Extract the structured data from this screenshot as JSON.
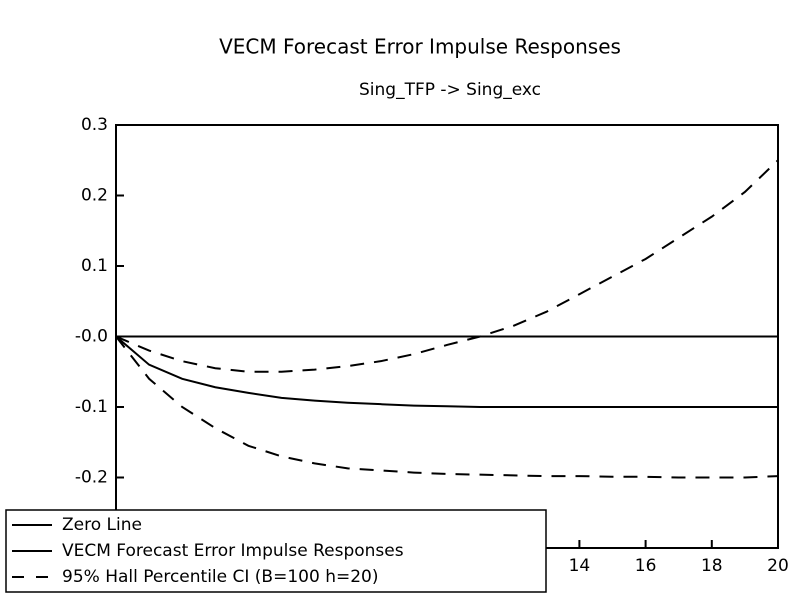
{
  "chart_data": {
    "type": "line",
    "title": "VECM Forecast Error Impulse Responses",
    "subtitle": "Sing_TFP -> Sing_exc",
    "x": [
      0,
      1,
      2,
      3,
      4,
      5,
      6,
      7,
      8,
      9,
      10,
      11,
      12,
      13,
      14,
      15,
      16,
      17,
      18,
      19,
      20
    ],
    "xlim": [
      0,
      20
    ],
    "xticks": [
      14,
      16,
      18,
      20
    ],
    "ylim": [
      -0.3,
      0.3
    ],
    "yticks": [
      0.3,
      0.2,
      0.1,
      {
        "value": 0,
        "label": "-0.0"
      },
      -0.1,
      -0.2
    ],
    "legend": "lower-left",
    "series": [
      {
        "name": "Zero Line",
        "color": "#000000",
        "dash": "solid",
        "values": [
          0,
          0,
          0,
          0,
          0,
          0,
          0,
          0,
          0,
          0,
          0,
          0,
          0,
          0,
          0,
          0,
          0,
          0,
          0,
          0,
          0
        ]
      },
      {
        "name": "VECM Forecast Error Impulse Responses",
        "color": "#000000",
        "dash": "solid",
        "values": [
          0,
          -0.04,
          -0.06,
          -0.072,
          -0.08,
          -0.087,
          -0.091,
          -0.094,
          -0.096,
          -0.098,
          -0.099,
          -0.1,
          -0.1,
          -0.1,
          -0.1,
          -0.1,
          -0.1,
          -0.1,
          -0.1,
          -0.1,
          -0.1
        ]
      },
      {
        "name": "95% Hall Percentile CI (B=100 h=20)",
        "color": "#000000",
        "dash": "dashed",
        "values": [
          0,
          -0.02,
          -0.035,
          -0.045,
          -0.05,
          -0.05,
          -0.047,
          -0.042,
          -0.035,
          -0.025,
          -0.012,
          0,
          0.015,
          0.035,
          0.06,
          0.085,
          0.11,
          0.14,
          0.17,
          0.205,
          0.25
        ]
      },
      {
        "color": "#000000",
        "dash": "dashed",
        "values": [
          0,
          -0.06,
          -0.1,
          -0.13,
          -0.155,
          -0.17,
          -0.18,
          -0.187,
          -0.19,
          -0.193,
          -0.195,
          -0.196,
          -0.197,
          -0.198,
          -0.198,
          -0.199,
          -0.199,
          -0.2,
          -0.2,
          -0.2,
          -0.198
        ]
      }
    ]
  }
}
